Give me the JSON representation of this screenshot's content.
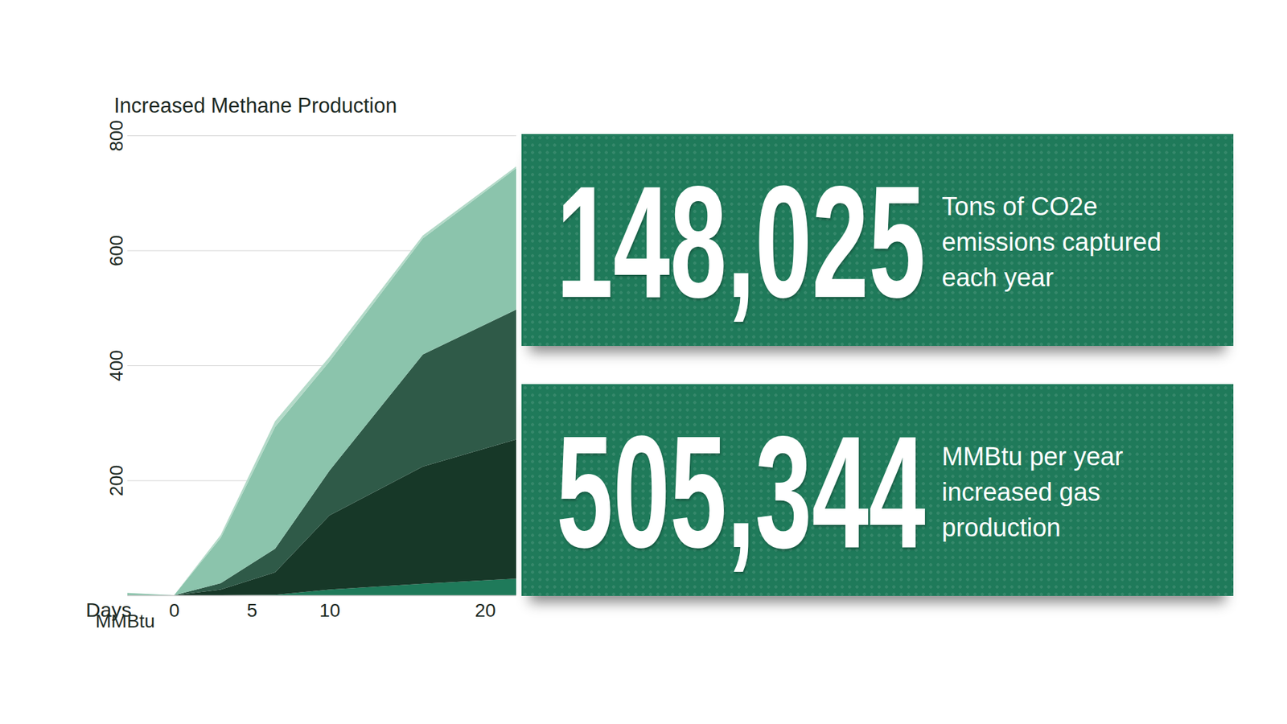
{
  "chart_data": {
    "type": "area",
    "stacked": true,
    "title": "Increased Methane Production",
    "xlabel": "Days",
    "ylabel": "MMBtu",
    "x": [
      -3,
      0,
      3,
      6.5,
      10,
      16,
      22
    ],
    "xlim": [
      -3,
      22
    ],
    "xticks": [
      0,
      5,
      10,
      20
    ],
    "ylim": [
      0,
      800
    ],
    "yticks": [
      200,
      400,
      600,
      800
    ],
    "grid": true,
    "series": [
      {
        "color": "#1f7a5a",
        "values": [
          0,
          0,
          0,
          1,
          10,
          20,
          29
        ]
      },
      {
        "color": "#173828",
        "values": [
          0,
          0,
          10,
          39,
          129,
          204,
          242
        ]
      },
      {
        "color": "#2f5a48",
        "values": [
          0,
          0,
          11,
          41,
          78,
          195,
          226
        ]
      },
      {
        "color": "#8bc4ac",
        "values": [
          4,
          0,
          79,
          212,
          190,
          202,
          246
        ]
      },
      {
        "color": "#b3dac8",
        "values": [
          0,
          0,
          5,
          10,
          8,
          5,
          3
        ]
      }
    ]
  },
  "panels": [
    {
      "value": "148,025",
      "text": "Tons of CO2e emissions captured each year"
    },
    {
      "value": "505,344",
      "text": "MMBtu per year increased gas production"
    }
  ]
}
